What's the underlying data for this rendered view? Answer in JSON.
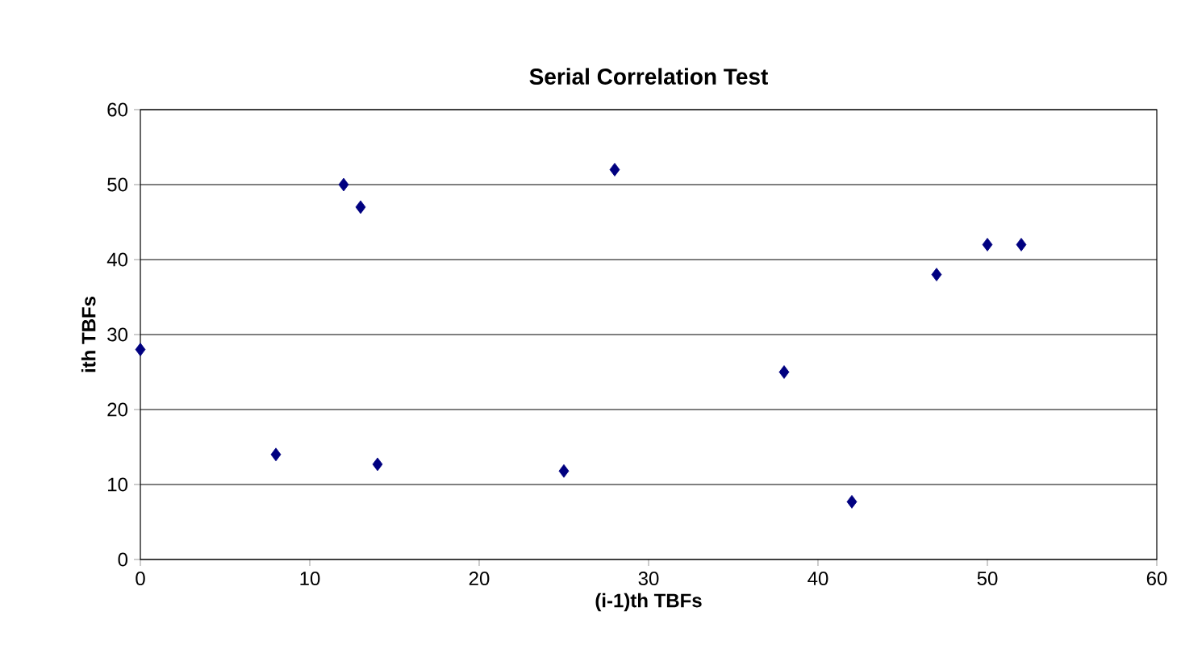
{
  "chart_data": {
    "type": "scatter",
    "title": "Serial Correlation Test",
    "xlabel": "(i-1)th TBFs",
    "ylabel": "ith TBFs",
    "x": [
      0,
      8,
      12,
      13,
      14,
      25,
      28,
      38,
      42,
      47,
      50,
      52
    ],
    "values": [
      28,
      14,
      50,
      47,
      12.7,
      11.8,
      52,
      25,
      7.7,
      38,
      42,
      42
    ],
    "color": "#000080",
    "marker": "diamond",
    "xlim": [
      0,
      60
    ],
    "xticks": [
      0,
      10,
      20,
      30,
      40,
      50,
      60
    ],
    "ylim": [
      0,
      60
    ],
    "yticks": [
      0,
      10,
      20,
      30,
      40,
      50,
      60
    ],
    "grid": "y"
  }
}
